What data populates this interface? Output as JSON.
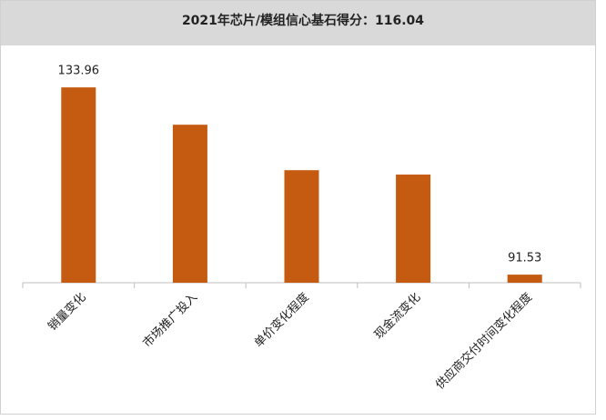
{
  "chart_data": {
    "type": "bar",
    "title": "2021年芯片/模组信心基石得分：116.04",
    "categories": [
      "销量变化",
      "市场推广投入",
      "单价变化程度",
      "现金流变化",
      "供应商交付时间变化程度"
    ],
    "values": [
      133.96,
      125.5,
      115.2,
      114.2,
      91.53
    ],
    "value_labels": [
      "133.96",
      null,
      null,
      null,
      "91.53"
    ],
    "color": "#c55a11",
    "ylim": [
      89.7,
      141.4
    ],
    "grid": false
  }
}
